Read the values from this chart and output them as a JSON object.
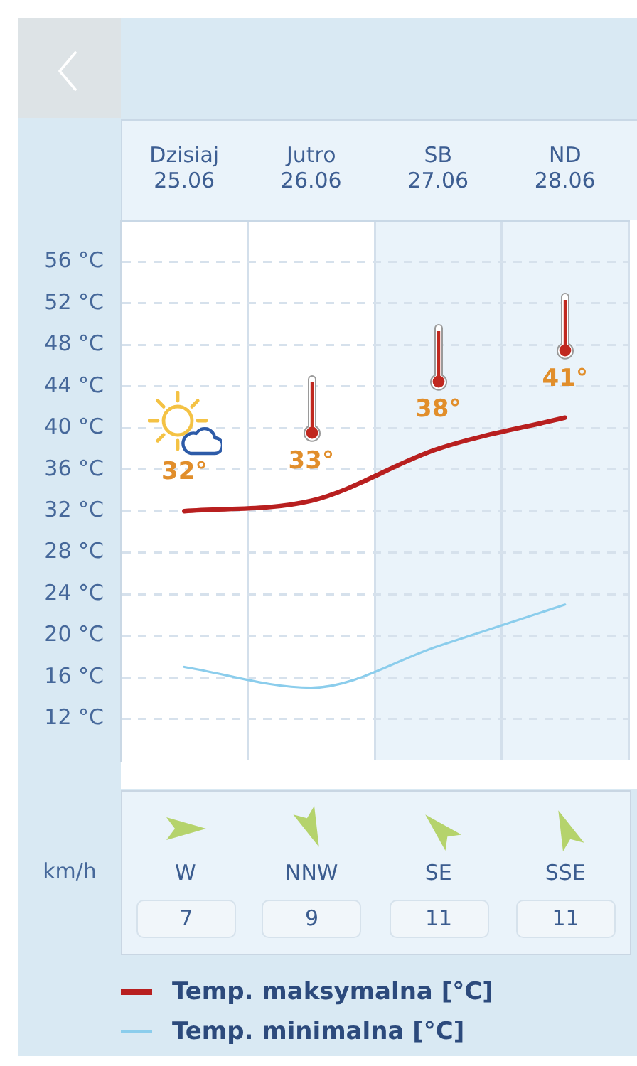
{
  "chart_data": [
    {
      "type": "line",
      "categories": [
        "Dzisiaj\n25.06",
        "Jutro\n26.06",
        "SB\n27.06",
        "ND\n28.06"
      ],
      "series": [
        {
          "name": "Temp. maksymalna [°C]",
          "color": "#b81f1f",
          "values": [
            32,
            33,
            38,
            41
          ],
          "value_labels": [
            "32°",
            "33°",
            "38°",
            "41°"
          ]
        },
        {
          "name": "Temp. minimalna [°C]",
          "color": "#8bcdec",
          "values": [
            17,
            15,
            19,
            23
          ]
        }
      ],
      "ylim": [
        8,
        60
      ],
      "yticks": [
        {
          "value": 12,
          "label": "12 °C"
        },
        {
          "value": 16,
          "label": "16 °C"
        },
        {
          "value": 20,
          "label": "20 °C"
        },
        {
          "value": 24,
          "label": "24 °C"
        },
        {
          "value": 28,
          "label": "28 °C"
        },
        {
          "value": 32,
          "label": "32 °C"
        },
        {
          "value": 36,
          "label": "36 °C"
        },
        {
          "value": 40,
          "label": "40 °C"
        },
        {
          "value": 44,
          "label": "44 °C"
        },
        {
          "value": 48,
          "label": "48 °C"
        },
        {
          "value": 52,
          "label": "52 °C"
        },
        {
          "value": 56,
          "label": "56 °C"
        }
      ],
      "grid": true,
      "legend": "bottom",
      "marker": "none",
      "bands": [
        {
          "axis": "x",
          "from": "SB\n27.06",
          "to": "ND\n28.06",
          "color": "#eaf3fa"
        }
      ]
    },
    {
      "type": "other",
      "ylabel": "km/h",
      "categories": [
        "W",
        "NNW",
        "SE",
        "SSE"
      ],
      "values": [
        7,
        9,
        11,
        11
      ],
      "data_labels": true
    }
  ]
}
